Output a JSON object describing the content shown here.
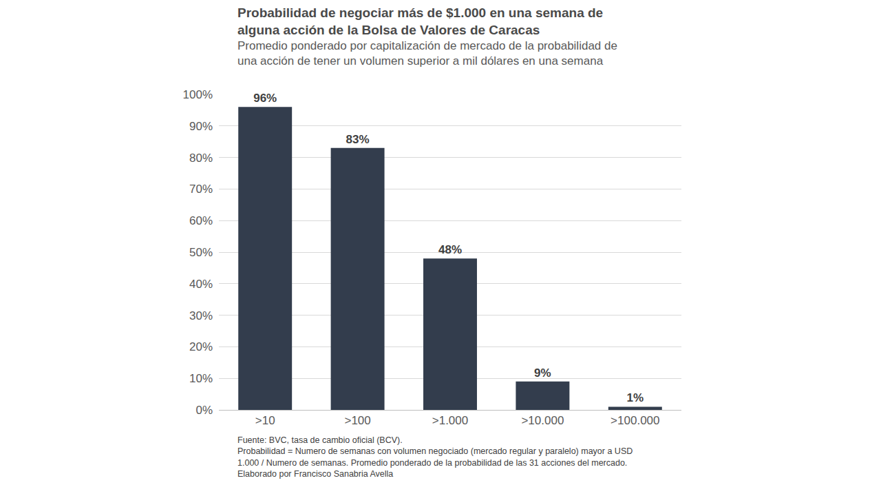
{
  "chart_data": {
    "type": "bar",
    "title": "Probabilidad de negociar más de $1.000 en una semana de alguna acción de la Bolsa de Valores de Caracas",
    "subtitle": "Promedio ponderado por capitalización de mercado de la probabilidad de una acción de tener un volumen superior a mil dólares en una semana",
    "notes": [
      "Fuente: BVC, tasa de cambio oficial (BCV).",
      "Probabilidad = Numero de semanas con volumen negociado (mercado regular y paralelo) mayor a USD 1.000 / Numero de semanas. Promedio ponderado de la probabilidad de las 31 acciones del mercado.",
      "Elaborado por Francisco Sanabria Avella"
    ],
    "categories": [
      ">10",
      ">100",
      ">1.000",
      ">10.000",
      ">100.000"
    ],
    "values": [
      96,
      83,
      48,
      9,
      1
    ],
    "value_labels": [
      "96%",
      "83%",
      "48%",
      "9%",
      "1%"
    ],
    "color": "#333d4d",
    "ylim": [
      0,
      100
    ],
    "yticks": [
      {
        "value": 0,
        "label": "0%"
      },
      {
        "value": 10,
        "label": "10%"
      },
      {
        "value": 20,
        "label": "20%"
      },
      {
        "value": 30,
        "label": "30%"
      },
      {
        "value": 40,
        "label": "40%"
      },
      {
        "value": 50,
        "label": "50%"
      },
      {
        "value": 60,
        "label": "60%"
      },
      {
        "value": 70,
        "label": "70%"
      },
      {
        "value": 80,
        "label": "80%"
      },
      {
        "value": 90,
        "label": "90%"
      },
      {
        "value": 100,
        "label": "100%"
      }
    ],
    "grid": true,
    "data_labels": true
  }
}
